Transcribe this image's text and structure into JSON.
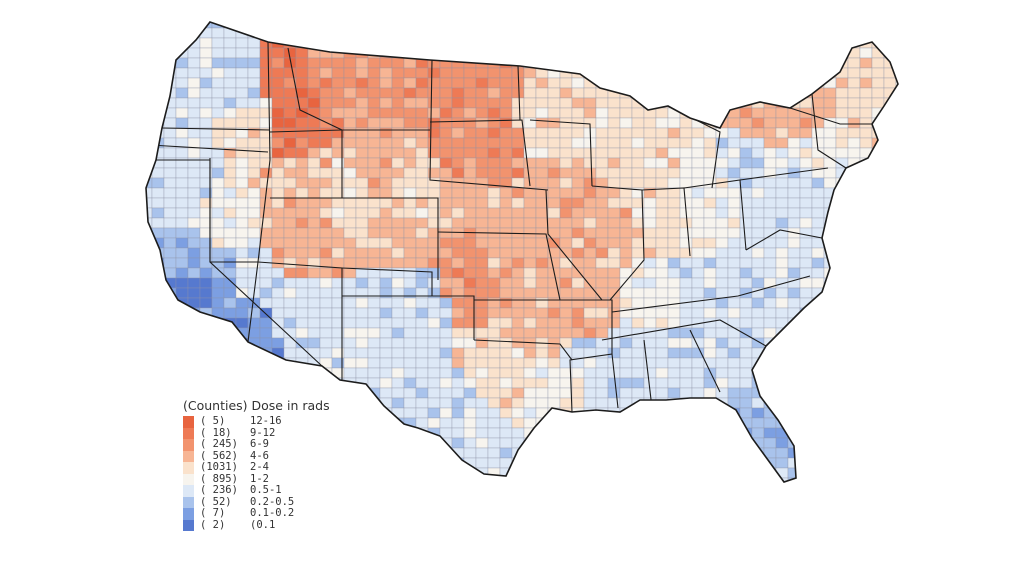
{
  "legend": {
    "title": "(Counties) Dose in rads",
    "entries": [
      {
        "count": "( 5)",
        "range": "12-16",
        "color": "#e8643f"
      },
      {
        "count": "( 18)",
        "range": "9-12",
        "color": "#ee7a55"
      },
      {
        "count": "( 245)",
        "range": "6-9",
        "color": "#f2936e"
      },
      {
        "count": "( 562)",
        "range": "4-6",
        "color": "#f7b594"
      },
      {
        "count": "(1031)",
        "range": "2-4",
        "color": "#fae2cc"
      },
      {
        "count": "( 895)",
        "range": "1-2",
        "color": "#f7f4ee"
      },
      {
        "count": "( 236)",
        "range": "0.5-1",
        "color": "#dde8f6"
      },
      {
        "count": "( 52)",
        "range": "0.2-0.5",
        "color": "#a9c3ec"
      },
      {
        "count": "( 7)",
        "range": "0.1-0.2",
        "color": "#7c9fe2"
      },
      {
        "count": "( 2)",
        "range": "(0.1",
        "color": "#5679cf"
      }
    ]
  },
  "colors": {
    "county_border": "#8e93a6",
    "state_border": "#1c1c1c"
  }
}
